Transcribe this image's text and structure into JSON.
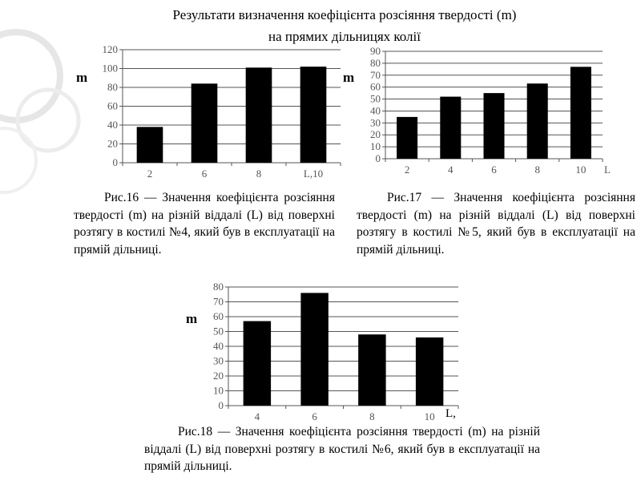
{
  "title": {
    "line1": "Результати визначення коефіцієнта розсіяння твердості (m)",
    "line2": "на прямих дільницях колії"
  },
  "chart_data": [
    {
      "type": "bar",
      "id": "fig16",
      "categories": [
        "2",
        "6",
        "8",
        "L,10"
      ],
      "values": [
        38,
        84,
        101,
        102
      ],
      "ylabel": "m",
      "xlabel": "L",
      "ylim": [
        0,
        120
      ],
      "yticks": [
        0,
        20,
        40,
        60,
        80,
        100,
        120
      ],
      "grid": true,
      "caption": "Рис.16 — Значення коефіцієнта розсіяння твердості (m) на різній віддалі (L) від поверхні розтягу в костилі №4, який був в експлуатації на прямій дільниці."
    },
    {
      "type": "bar",
      "id": "fig17",
      "categories": [
        "2",
        "4",
        "6",
        "8",
        "10"
      ],
      "values": [
        35,
        52,
        55,
        63,
        77
      ],
      "ylabel": "m",
      "xlabel": "L",
      "ylim": [
        0,
        90
      ],
      "yticks": [
        0,
        10,
        20,
        30,
        40,
        50,
        60,
        70,
        80,
        90
      ],
      "grid": true,
      "caption": "Рис.17 — Значення коефіцієнта розсіяння твердості (m) на різній віддалі (L) від поверхні розтягу в костилі №5, який був в експлуатації на прямій дільниці."
    },
    {
      "type": "bar",
      "id": "fig18",
      "categories": [
        "4",
        "6",
        "8",
        "10"
      ],
      "values": [
        57,
        76,
        48,
        46
      ],
      "ylabel": "m",
      "xlabel": "L,",
      "ylim": [
        0,
        80
      ],
      "yticks": [
        0,
        10,
        20,
        30,
        40,
        50,
        60,
        70,
        80
      ],
      "grid": true,
      "caption": "Рис.18 — Значення коефіцієнта розсіяння твердості (m) на різній віддалі (L) від поверхні розтягу в костилі №6, який був в експлуатації на прямій дільниці."
    }
  ]
}
